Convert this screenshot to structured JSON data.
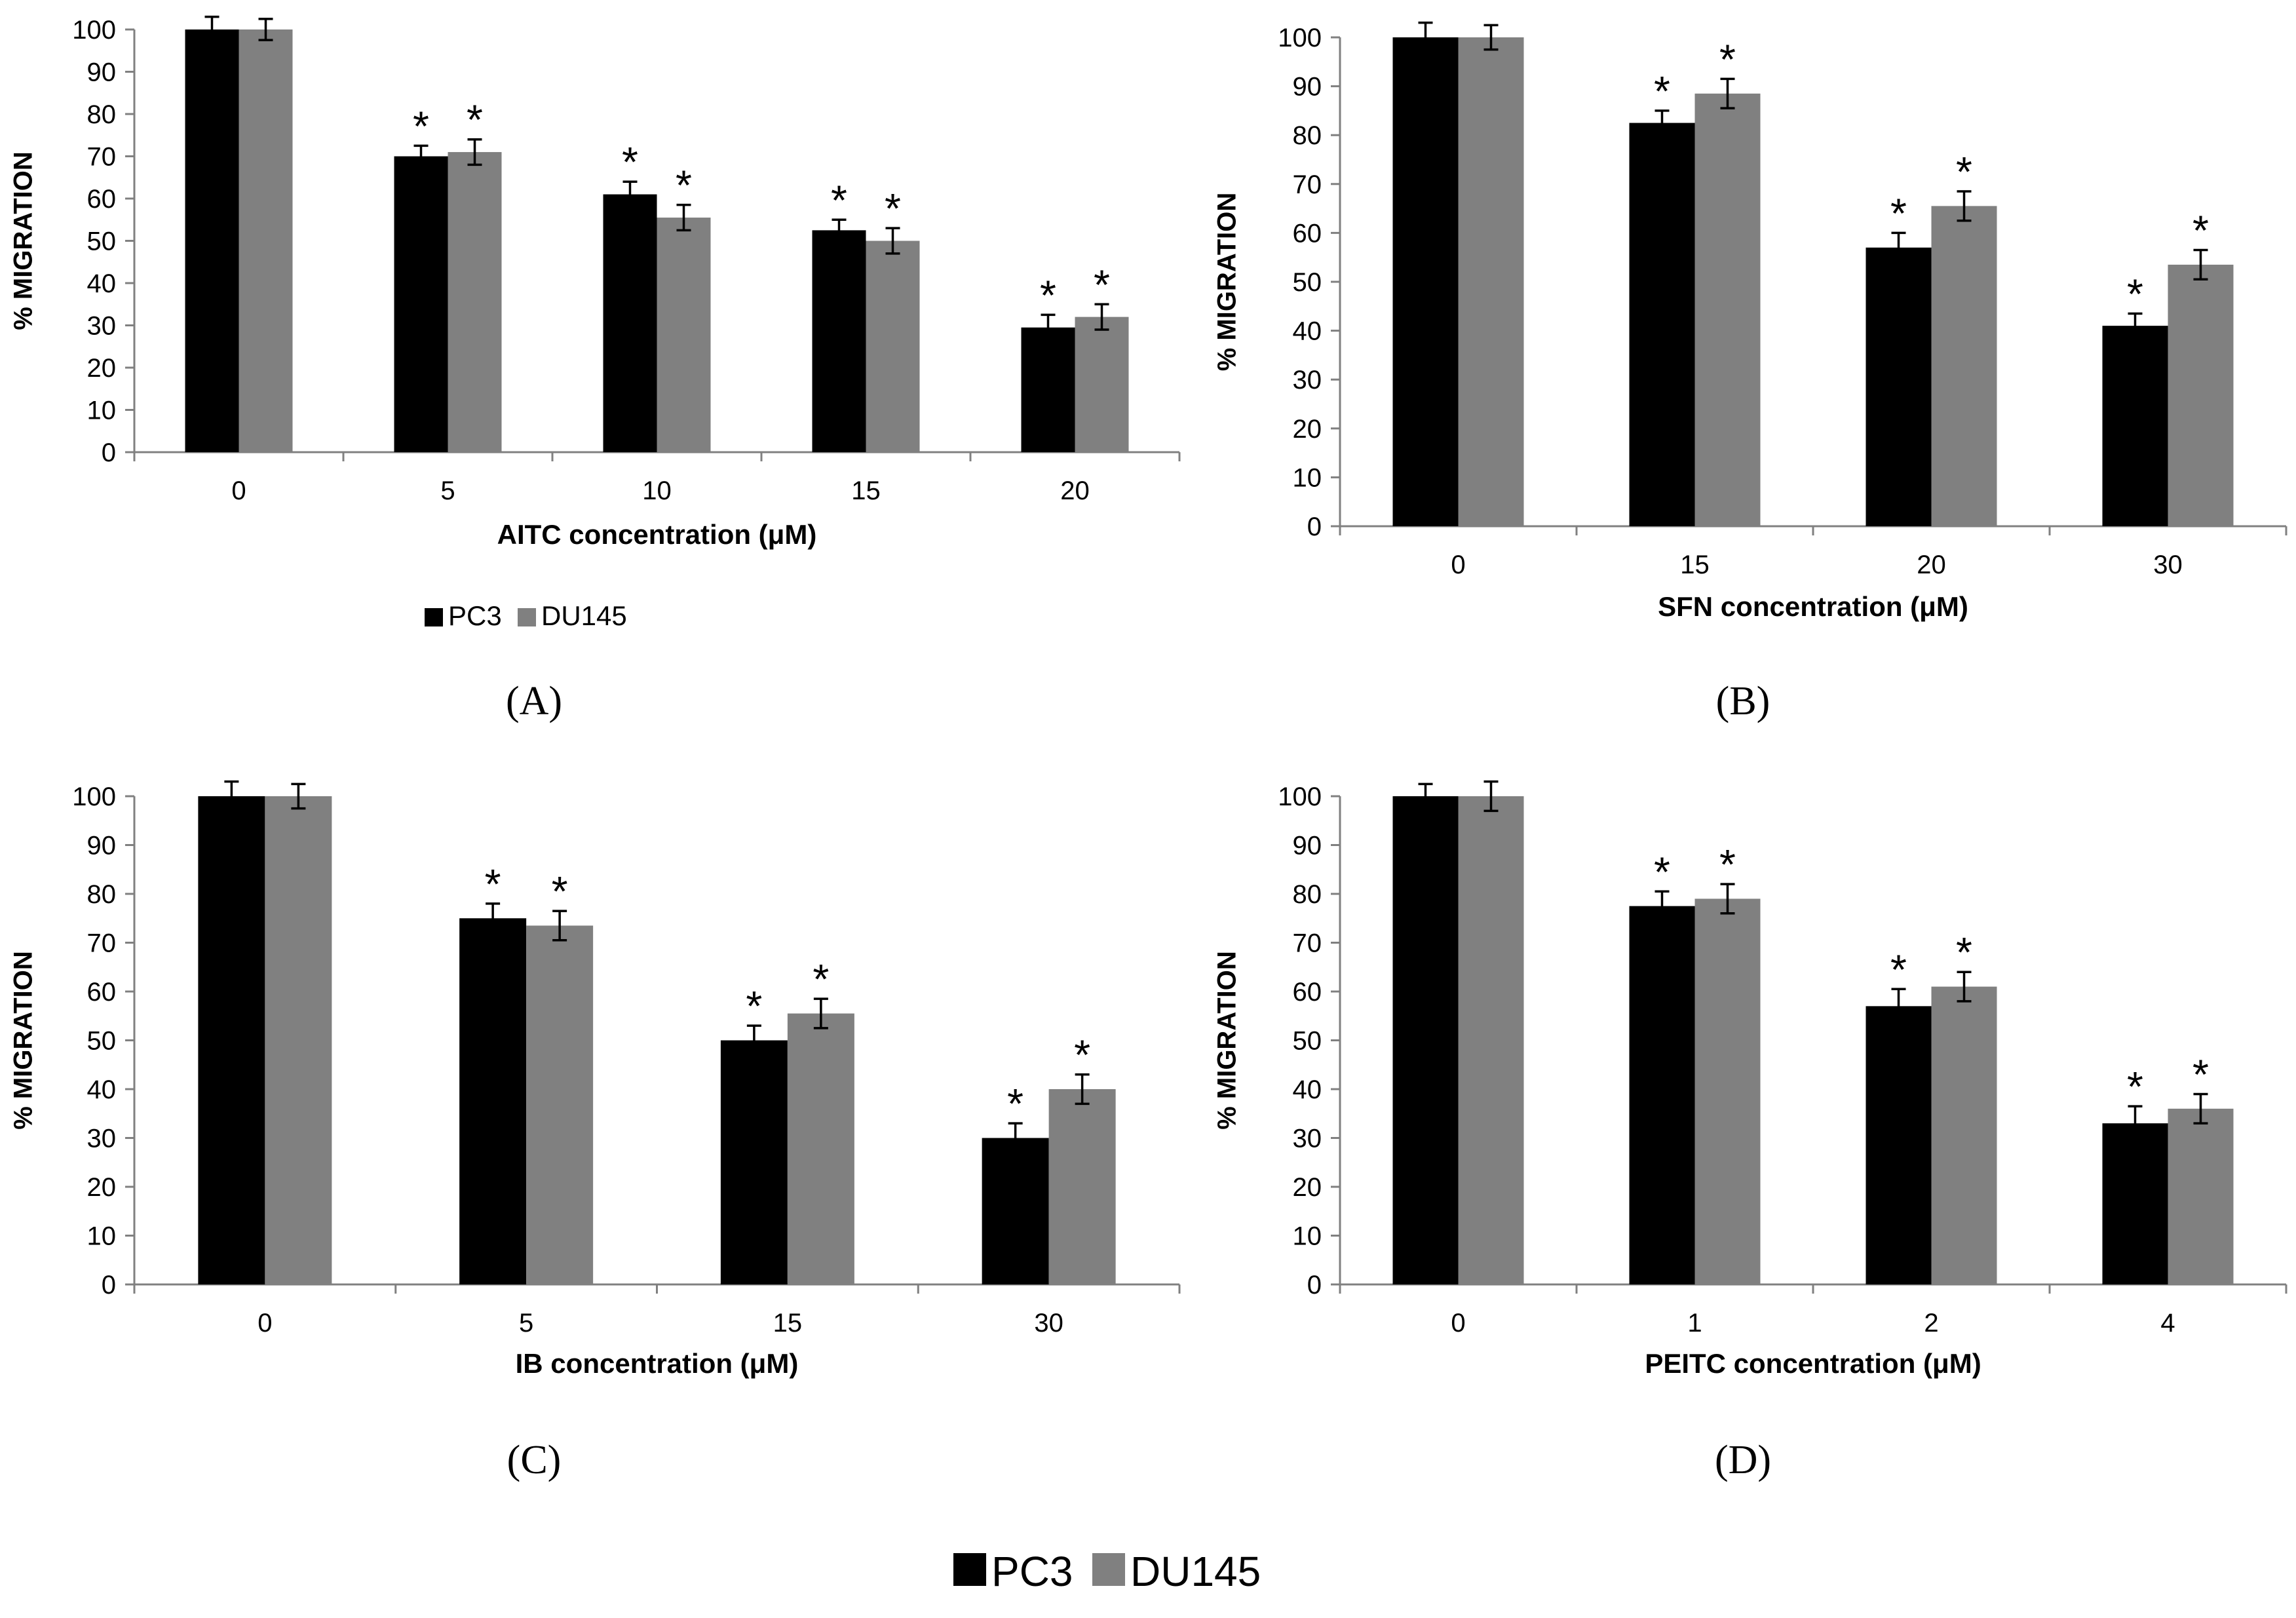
{
  "figure": {
    "colors": {
      "pc3": "#000000",
      "du145": "#808080",
      "axis": "#808080",
      "text": "#000000"
    },
    "bottom_legend": [
      {
        "name": "PC3",
        "color": "#000000"
      },
      {
        "name": "DU145",
        "color": "#808080"
      }
    ]
  },
  "chart_data": [
    {
      "id": "A",
      "type": "bar",
      "panel_label": "(A)",
      "xlabel": "AITC concentration (μM)",
      "ylabel": "% MIGRATION",
      "ylim": [
        0,
        100
      ],
      "yticks": [
        0,
        10,
        20,
        30,
        40,
        50,
        60,
        70,
        80,
        90,
        100
      ],
      "categories": [
        "0",
        "5",
        "10",
        "15",
        "20"
      ],
      "series": [
        {
          "name": "PC3",
          "color": "#000000",
          "values": [
            100,
            70,
            61,
            52.5,
            29.5
          ],
          "errors": [
            3,
            2.5,
            3,
            2.5,
            3
          ],
          "significant": [
            false,
            true,
            true,
            true,
            true
          ]
        },
        {
          "name": "DU145",
          "color": "#808080",
          "values": [
            100,
            71,
            55.5,
            50,
            32
          ],
          "errors": [
            2.5,
            3,
            3,
            3,
            3
          ],
          "significant": [
            false,
            true,
            true,
            true,
            true
          ]
        }
      ],
      "significance_marker": "*",
      "legend": [
        {
          "name": "PC3"
        },
        {
          "name": "DU145"
        }
      ]
    },
    {
      "id": "B",
      "type": "bar",
      "panel_label": "(B)",
      "xlabel": "SFN concentration (μM)",
      "ylabel": "% MIGRATION",
      "ylim": [
        0,
        100
      ],
      "yticks": [
        0,
        10,
        20,
        30,
        40,
        50,
        60,
        70,
        80,
        90,
        100
      ],
      "categories": [
        "0",
        "15",
        "20",
        "30"
      ],
      "series": [
        {
          "name": "PC3",
          "color": "#000000",
          "values": [
            100,
            82.5,
            57,
            41
          ],
          "errors": [
            3,
            2.5,
            3,
            2.5
          ],
          "significant": [
            false,
            true,
            true,
            true
          ]
        },
        {
          "name": "DU145",
          "color": "#808080",
          "values": [
            100,
            88.5,
            65.5,
            53.5
          ],
          "errors": [
            2.5,
            3,
            3,
            3
          ],
          "significant": [
            false,
            true,
            true,
            true
          ]
        }
      ],
      "significance_marker": "*"
    },
    {
      "id": "C",
      "type": "bar",
      "panel_label": "(C)",
      "xlabel": "IB concentration (μM)",
      "ylabel": "% MIGRATION",
      "ylim": [
        0,
        100
      ],
      "yticks": [
        0,
        10,
        20,
        30,
        40,
        50,
        60,
        70,
        80,
        90,
        100
      ],
      "categories": [
        "0",
        "5",
        "15",
        "30"
      ],
      "series": [
        {
          "name": "PC3",
          "color": "#000000",
          "values": [
            100,
            75,
            50,
            30
          ],
          "errors": [
            3,
            3,
            3,
            3
          ],
          "significant": [
            false,
            true,
            true,
            true
          ]
        },
        {
          "name": "DU145",
          "color": "#808080",
          "values": [
            100,
            73.5,
            55.5,
            40
          ],
          "errors": [
            2.5,
            3,
            3,
            3
          ],
          "significant": [
            false,
            true,
            true,
            true
          ]
        }
      ],
      "significance_marker": "*"
    },
    {
      "id": "D",
      "type": "bar",
      "panel_label": "(D)",
      "xlabel": "PEITC concentration (μM)",
      "ylabel": "% MIGRATION",
      "ylim": [
        0,
        100
      ],
      "yticks": [
        0,
        10,
        20,
        30,
        40,
        50,
        60,
        70,
        80,
        90,
        100
      ],
      "categories": [
        "0",
        "1",
        "2",
        "4"
      ],
      "series": [
        {
          "name": "PC3",
          "color": "#000000",
          "values": [
            100,
            77.5,
            57,
            33
          ],
          "errors": [
            2.5,
            3,
            3.5,
            3.5
          ],
          "significant": [
            false,
            true,
            true,
            true
          ]
        },
        {
          "name": "DU145",
          "color": "#808080",
          "values": [
            100,
            79,
            61,
            36
          ],
          "errors": [
            3,
            3,
            3,
            3
          ],
          "significant": [
            false,
            true,
            true,
            true
          ]
        }
      ],
      "significance_marker": "*"
    }
  ]
}
